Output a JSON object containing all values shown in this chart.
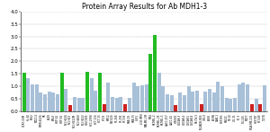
{
  "title": "Protein Array Results for Ab MDH1-3",
  "labels": [
    "CCRF-CEM",
    "HL-60",
    "K562",
    "MOLT-4",
    "RPMI-8226",
    "SR",
    "A549",
    "EKVX",
    "HOP-62",
    "HOP-92",
    "NCI-H226",
    "NCI-H23",
    "NCI-H322M",
    "NCI-H460",
    "NCI-H522",
    "COLO205",
    "HCC-2998",
    "HCT-116",
    "HCT-15",
    "HT29",
    "KM12",
    "SW-620",
    "SF-268",
    "SF-295",
    "SF-539",
    "SNB-19",
    "SNB-75",
    "U251",
    "LOX IMVI",
    "MALME-3M",
    "M14",
    "SK-MEL-2",
    "SK-MEL-28",
    "SK-MEL-5",
    "UACC-257",
    "UACC-62",
    "IGROV1",
    "OVCAR-3",
    "OVCAR-4",
    "OVCAR-5",
    "OVCAR-8",
    "SK-OV-3",
    "NCI/ADR-RES",
    "786-0",
    "A498",
    "ACHN",
    "CAKI-1",
    "RXF393",
    "SN12C",
    "TK-10",
    "UO-31",
    "PC-3",
    "DU-145",
    "MCF7",
    "MDA-MB-231",
    "HS578T",
    "BT-549",
    "T-47D"
  ],
  "values": [
    1.55,
    1.35,
    1.1,
    1.1,
    0.75,
    0.7,
    0.8,
    0.75,
    0.7,
    1.55,
    0.9,
    0.25,
    0.6,
    0.55,
    0.55,
    1.6,
    1.35,
    0.85,
    1.55,
    0.3,
    1.15,
    0.6,
    0.55,
    0.6,
    0.3,
    0.55,
    1.15,
    1.0,
    1.05,
    1.1,
    2.3,
    3.05,
    1.55,
    1.0,
    0.7,
    0.65,
    0.25,
    0.75,
    0.65,
    1.0,
    0.8,
    0.85,
    0.3,
    0.8,
    0.9,
    0.75,
    1.2,
    1.0,
    0.55,
    0.5,
    0.55,
    1.1,
    1.15,
    1.1,
    0.3,
    0.5,
    0.3,
    1.05
  ],
  "colors": [
    "#22bb22",
    "#a8c0d8",
    "#a8c0d8",
    "#a8c0d8",
    "#a8c0d8",
    "#a8c0d8",
    "#a8c0d8",
    "#a8c0d8",
    "#a8c0d8",
    "#22bb22",
    "#a8c0d8",
    "#cc2222",
    "#a8c0d8",
    "#a8c0d8",
    "#a8c0d8",
    "#22bb22",
    "#a8c0d8",
    "#a8c0d8",
    "#22bb22",
    "#cc2222",
    "#a8c0d8",
    "#a8c0d8",
    "#a8c0d8",
    "#a8c0d8",
    "#cc2222",
    "#a8c0d8",
    "#a8c0d8",
    "#a8c0d8",
    "#a8c0d8",
    "#a8c0d8",
    "#22bb22",
    "#22bb22",
    "#a8c0d8",
    "#a8c0d8",
    "#a8c0d8",
    "#a8c0d8",
    "#cc2222",
    "#a8c0d8",
    "#a8c0d8",
    "#a8c0d8",
    "#a8c0d8",
    "#a8c0d8",
    "#cc2222",
    "#a8c0d8",
    "#a8c0d8",
    "#a8c0d8",
    "#a8c0d8",
    "#a8c0d8",
    "#a8c0d8",
    "#a8c0d8",
    "#a8c0d8",
    "#a8c0d8",
    "#a8c0d8",
    "#a8c0d8",
    "#cc2222",
    "#a8c0d8",
    "#cc2222",
    "#a8c0d8"
  ],
  "ylim": [
    0,
    4.0
  ],
  "yticks": [
    0.0,
    0.5,
    1.0,
    1.5,
    2.0,
    2.5,
    3.0,
    3.5,
    4.0
  ],
  "bg_color": "#ffffff",
  "grid_color": "#888888"
}
